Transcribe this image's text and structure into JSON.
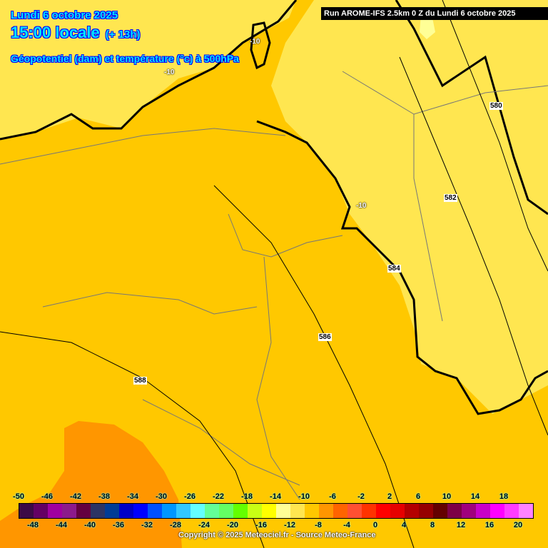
{
  "header": {
    "date": "Lundi 6 octobre 2025",
    "time": "15:00 locale",
    "lead": "(+ 13h)",
    "parameter": "Géopotentiel (dam) et température (°c) à 500hPa",
    "run": "Run AROME-IFS 2.5km 0 Z du Lundi 6 octobre 2025"
  },
  "map_labels": {
    "temperature": [
      "-10",
      "-10",
      "-10"
    ],
    "geopotential": [
      "580",
      "582",
      "584",
      "586",
      "588"
    ]
  },
  "colorbar": {
    "unit": "°C",
    "upper_ticks": [
      "-50",
      "-46",
      "-42",
      "-38",
      "-34",
      "-30",
      "-26",
      "-22",
      "-18",
      "-14",
      "-10",
      "-6",
      "-2",
      "2",
      "6",
      "10",
      "14",
      "18"
    ],
    "lower_ticks": [
      "-48",
      "-44",
      "-40",
      "-36",
      "-32",
      "-28",
      "-24",
      "-20",
      "-16",
      "-12",
      "-8",
      "-4",
      "0",
      "4",
      "8",
      "12",
      "16",
      "20"
    ],
    "colors": [
      "#3c0a46",
      "#640064",
      "#a000a0",
      "#8c1a8c",
      "#640040",
      "#2c3464",
      "#003c96",
      "#0000c8",
      "#0000ff",
      "#0050ff",
      "#0096ff",
      "#32c8ff",
      "#64ffff",
      "#64ff96",
      "#64ff64",
      "#64ff00",
      "#c8ff14",
      "#ffff00",
      "#ffff96",
      "#ffe650",
      "#ffc800",
      "#ff9600",
      "#ff6400",
      "#ff5032",
      "#ff3200",
      "#ff0000",
      "#e60000",
      "#b40000",
      "#960000",
      "#640000",
      "#7d0046",
      "#a0007d",
      "#c800c8",
      "#ff00ff",
      "#ff3cff",
      "#ff82ff"
    ]
  },
  "copyright": "Copyright © 2025 Meteociel.fr - Source Meteo-France"
}
